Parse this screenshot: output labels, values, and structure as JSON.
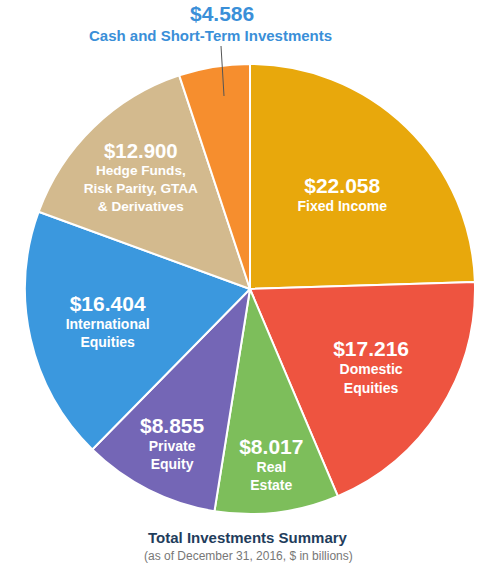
{
  "chart_data": {
    "type": "pie",
    "title": "Total Investments Summary",
    "subtitle": "(as of December 31, 2016, $ in billions)",
    "categories": [
      "Fixed Income",
      "Domestic\nEquities",
      "Real\nEstate",
      "Private\nEquity",
      "International\nEquities",
      "Hedge Funds,\nRisk Parity, GTAA\n& Derivatives",
      "Cash and Short-Term Investments"
    ],
    "values": [
      22.058,
      17.216,
      8.017,
      8.855,
      16.404,
      12.9,
      4.586
    ],
    "value_labels": [
      "$22.058",
      "$17.216",
      "$8.017",
      "$8.855",
      "$16.404",
      "$12.900",
      "$4.586"
    ],
    "colors": [
      "#E8A80C",
      "#EE5440",
      "#7DBE5B",
      "#7466B6",
      "#3B98DE",
      "#D3BA8E",
      "#F68E2E"
    ],
    "data_labels": true
  }
}
